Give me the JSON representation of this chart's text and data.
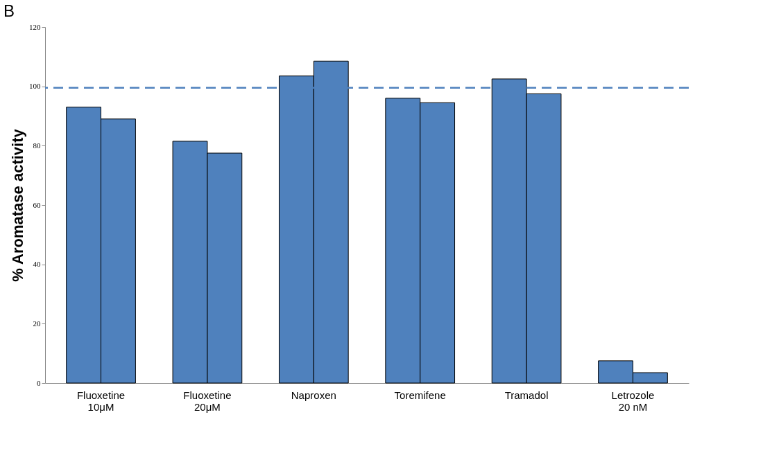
{
  "chart_data": {
    "type": "bar",
    "title": "B",
    "ylabel": "% Aromatase activity",
    "categories": [
      "Fluoxetine\n10μM",
      "Fluoxetine\n20μM",
      "Naproxen",
      "Toremifene",
      "Tramadol",
      "Letrozole\n20 nM"
    ],
    "series": [
      {
        "color": "#4f81bd",
        "values": [
          93,
          81.5,
          103.5,
          96,
          102.5,
          7.5
        ]
      },
      {
        "color": "#4f81bd",
        "values": [
          89,
          77.5,
          108.5,
          94.5,
          97.5,
          3.5
        ]
      }
    ],
    "ylim": [
      0,
      120
    ],
    "yticks": [
      0,
      20,
      40,
      60,
      80,
      100,
      120
    ],
    "grid": false,
    "legend": false,
    "ref_lines": [
      {
        "axis": "y",
        "value": 99.5,
        "color": "#4f81bd",
        "line_style": "dashed"
      }
    ]
  }
}
